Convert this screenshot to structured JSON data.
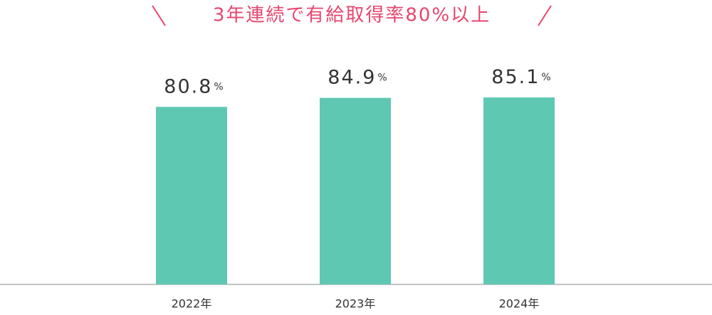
{
  "chart_data": {
    "type": "bar",
    "title": "3年連続で有給取得率80%以上",
    "categories": [
      "2022年",
      "2023年",
      "2024年"
    ],
    "values": [
      80.8,
      84.9,
      85.1
    ],
    "value_labels": [
      "80.8%",
      "84.9%",
      "85.1%"
    ],
    "color": "#5ec8b3",
    "title_color": "#e8456e",
    "ylim": [
      0,
      100
    ]
  }
}
